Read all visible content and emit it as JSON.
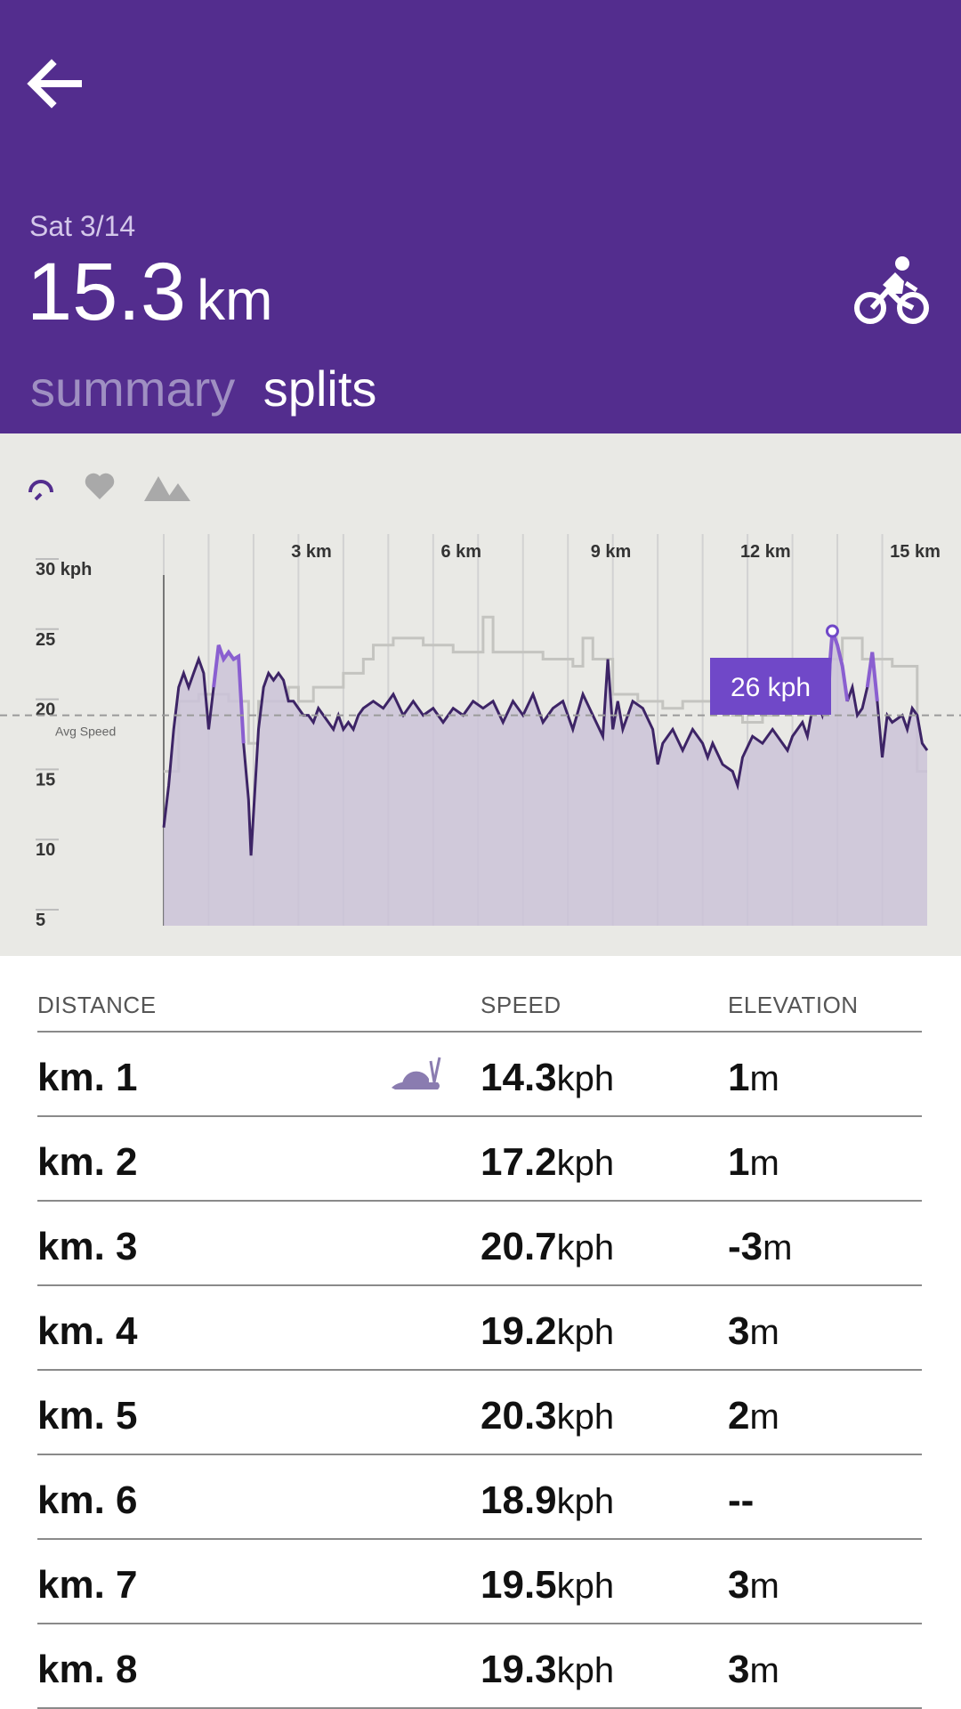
{
  "header": {
    "date": "Sat 3/14",
    "distance_value": "15.3",
    "distance_unit": "km",
    "tabs": [
      {
        "label": "summary",
        "active": false
      },
      {
        "label": "splits",
        "active": true
      }
    ],
    "activity_icon": "bike-icon",
    "accent": "#532d8e"
  },
  "metric_icons": [
    "speedometer-icon",
    "heart-icon",
    "mountains-icon"
  ],
  "chart_data": {
    "type": "line",
    "x_axis_ticks": [
      "3 km",
      "6 km",
      "9 km",
      "12 km",
      "15 km"
    ],
    "y_axis_ticks": [
      "30 kph",
      "25",
      "20",
      "15",
      "10",
      "5"
    ],
    "avg_label": "Avg Speed",
    "avg_value": 20,
    "tooltip_label": "26 kph",
    "tooltip_x_km": 13.4,
    "ylim": [
      5,
      30
    ],
    "xlim": [
      0,
      15.3
    ],
    "speed_series": [
      [
        0,
        12
      ],
      [
        0.1,
        15
      ],
      [
        0.2,
        19
      ],
      [
        0.3,
        22
      ],
      [
        0.4,
        23
      ],
      [
        0.5,
        22
      ],
      [
        0.6,
        23
      ],
      [
        0.7,
        24
      ],
      [
        0.8,
        23
      ],
      [
        0.9,
        19
      ],
      [
        1,
        22
      ],
      [
        1.1,
        25
      ],
      [
        1.2,
        24
      ],
      [
        1.3,
        24.5
      ],
      [
        1.4,
        24
      ],
      [
        1.5,
        24.2
      ],
      [
        1.6,
        18
      ],
      [
        1.7,
        14
      ],
      [
        1.75,
        10
      ],
      [
        1.8,
        13
      ],
      [
        1.9,
        19
      ],
      [
        2,
        22
      ],
      [
        2.1,
        23
      ],
      [
        2.2,
        22.5
      ],
      [
        2.3,
        23
      ],
      [
        2.4,
        22.5
      ],
      [
        2.5,
        21
      ],
      [
        2.6,
        21
      ],
      [
        2.7,
        20.5
      ],
      [
        2.8,
        20
      ],
      [
        2.9,
        20
      ],
      [
        3,
        19.5
      ],
      [
        3.1,
        20.5
      ],
      [
        3.2,
        20
      ],
      [
        3.3,
        19.5
      ],
      [
        3.4,
        19
      ],
      [
        3.5,
        20
      ],
      [
        3.6,
        19
      ],
      [
        3.7,
        19.5
      ],
      [
        3.8,
        19
      ],
      [
        3.9,
        20
      ],
      [
        4,
        20.5
      ],
      [
        4.2,
        21
      ],
      [
        4.4,
        20.5
      ],
      [
        4.6,
        21.5
      ],
      [
        4.8,
        20
      ],
      [
        5,
        21
      ],
      [
        5.2,
        20
      ],
      [
        5.4,
        20.5
      ],
      [
        5.6,
        19.5
      ],
      [
        5.8,
        20.5
      ],
      [
        6,
        20
      ],
      [
        6.2,
        21
      ],
      [
        6.4,
        20.5
      ],
      [
        6.6,
        21
      ],
      [
        6.8,
        19.5
      ],
      [
        7,
        21
      ],
      [
        7.2,
        20
      ],
      [
        7.4,
        21.5
      ],
      [
        7.6,
        19.5
      ],
      [
        7.8,
        20.5
      ],
      [
        8,
        21
      ],
      [
        8.2,
        19
      ],
      [
        8.4,
        21.5
      ],
      [
        8.6,
        20
      ],
      [
        8.8,
        18.5
      ],
      [
        8.9,
        24
      ],
      [
        9,
        19
      ],
      [
        9.1,
        21
      ],
      [
        9.2,
        19
      ],
      [
        9.4,
        21
      ],
      [
        9.6,
        20.5
      ],
      [
        9.8,
        19
      ],
      [
        9.9,
        16.5
      ],
      [
        10,
        18
      ],
      [
        10.2,
        19
      ],
      [
        10.4,
        17.5
      ],
      [
        10.6,
        19
      ],
      [
        10.8,
        18
      ],
      [
        10.9,
        17
      ],
      [
        11,
        18
      ],
      [
        11.2,
        16.5
      ],
      [
        11.4,
        16
      ],
      [
        11.5,
        15
      ],
      [
        11.6,
        17
      ],
      [
        11.8,
        18.5
      ],
      [
        12,
        18
      ],
      [
        12.2,
        19
      ],
      [
        12.4,
        18
      ],
      [
        12.5,
        17.5
      ],
      [
        12.6,
        18.5
      ],
      [
        12.8,
        19.5
      ],
      [
        12.9,
        18.5
      ],
      [
        13,
        20.5
      ],
      [
        13.1,
        21
      ],
      [
        13.2,
        20
      ],
      [
        13.3,
        21.5
      ],
      [
        13.4,
        26
      ],
      [
        13.5,
        25
      ],
      [
        13.6,
        23.5
      ],
      [
        13.7,
        21
      ],
      [
        13.8,
        22
      ],
      [
        13.9,
        20
      ],
      [
        14,
        20.5
      ],
      [
        14.1,
        22
      ],
      [
        14.2,
        24.5
      ],
      [
        14.3,
        21
      ],
      [
        14.4,
        17
      ],
      [
        14.5,
        20
      ],
      [
        14.6,
        19.5
      ],
      [
        14.8,
        20
      ],
      [
        14.9,
        19
      ],
      [
        15,
        20.5
      ],
      [
        15.1,
        20
      ],
      [
        15.2,
        18
      ],
      [
        15.3,
        17.5
      ]
    ],
    "elevation_series": [
      [
        0,
        16
      ],
      [
        0.3,
        21
      ],
      [
        0.6,
        21
      ],
      [
        0.7,
        21.5
      ],
      [
        1.2,
        21.5
      ],
      [
        1.3,
        21
      ],
      [
        1.4,
        21
      ],
      [
        1.6,
        21
      ],
      [
        1.7,
        18
      ],
      [
        1.9,
        21
      ],
      [
        2.5,
        22
      ],
      [
        2.7,
        21
      ],
      [
        3,
        22
      ],
      [
        3.5,
        22
      ],
      [
        3.6,
        23
      ],
      [
        4,
        24
      ],
      [
        4.2,
        25
      ],
      [
        4.4,
        25
      ],
      [
        4.6,
        25.5
      ],
      [
        5,
        25.5
      ],
      [
        5.2,
        25
      ],
      [
        5.6,
        25
      ],
      [
        5.8,
        24.5
      ],
      [
        6.3,
        24.5
      ],
      [
        6.4,
        27
      ],
      [
        6.6,
        24.5
      ],
      [
        6.8,
        24.5
      ],
      [
        7.2,
        24.5
      ],
      [
        7.6,
        24
      ],
      [
        8,
        24
      ],
      [
        8.2,
        23.5
      ],
      [
        8.4,
        25.5
      ],
      [
        8.6,
        24
      ],
      [
        8.8,
        24
      ],
      [
        9,
        21.5
      ],
      [
        9.5,
        21
      ],
      [
        10,
        20.5
      ],
      [
        10.4,
        21
      ],
      [
        10.8,
        21
      ],
      [
        11,
        20.5
      ],
      [
        11.4,
        20
      ],
      [
        11.6,
        19.5
      ],
      [
        12,
        20
      ],
      [
        12.3,
        20.5
      ],
      [
        12.6,
        21
      ],
      [
        12.9,
        22
      ],
      [
        13.3,
        24
      ],
      [
        13.6,
        25.5
      ],
      [
        14,
        24
      ],
      [
        14.3,
        24
      ],
      [
        14.6,
        23.5
      ],
      [
        15,
        23.5
      ],
      [
        15.1,
        16
      ],
      [
        15.3,
        16
      ]
    ]
  },
  "table": {
    "headers": {
      "distance": "DISTANCE",
      "speed": "SPEED",
      "elevation": "ELEVATION"
    },
    "slowest_icon": "snail-icon",
    "rows": [
      {
        "km": "km. 1",
        "speed": "14.3",
        "speed_unit": "kph",
        "elev": "1",
        "elev_unit": "m",
        "slowest": true
      },
      {
        "km": "km. 2",
        "speed": "17.2",
        "speed_unit": "kph",
        "elev": "1",
        "elev_unit": "m"
      },
      {
        "km": "km. 3",
        "speed": "20.7",
        "speed_unit": "kph",
        "elev": "-3",
        "elev_unit": "m"
      },
      {
        "km": "km. 4",
        "speed": "19.2",
        "speed_unit": "kph",
        "elev": "3",
        "elev_unit": "m"
      },
      {
        "km": "km. 5",
        "speed": "20.3",
        "speed_unit": "kph",
        "elev": "2",
        "elev_unit": "m"
      },
      {
        "km": "km. 6",
        "speed": "18.9",
        "speed_unit": "kph",
        "elev": "--",
        "elev_unit": ""
      },
      {
        "km": "km. 7",
        "speed": "19.5",
        "speed_unit": "kph",
        "elev": "3",
        "elev_unit": "m"
      },
      {
        "km": "km. 8",
        "speed": "19.3",
        "speed_unit": "kph",
        "elev": "3",
        "elev_unit": "m"
      }
    ]
  }
}
